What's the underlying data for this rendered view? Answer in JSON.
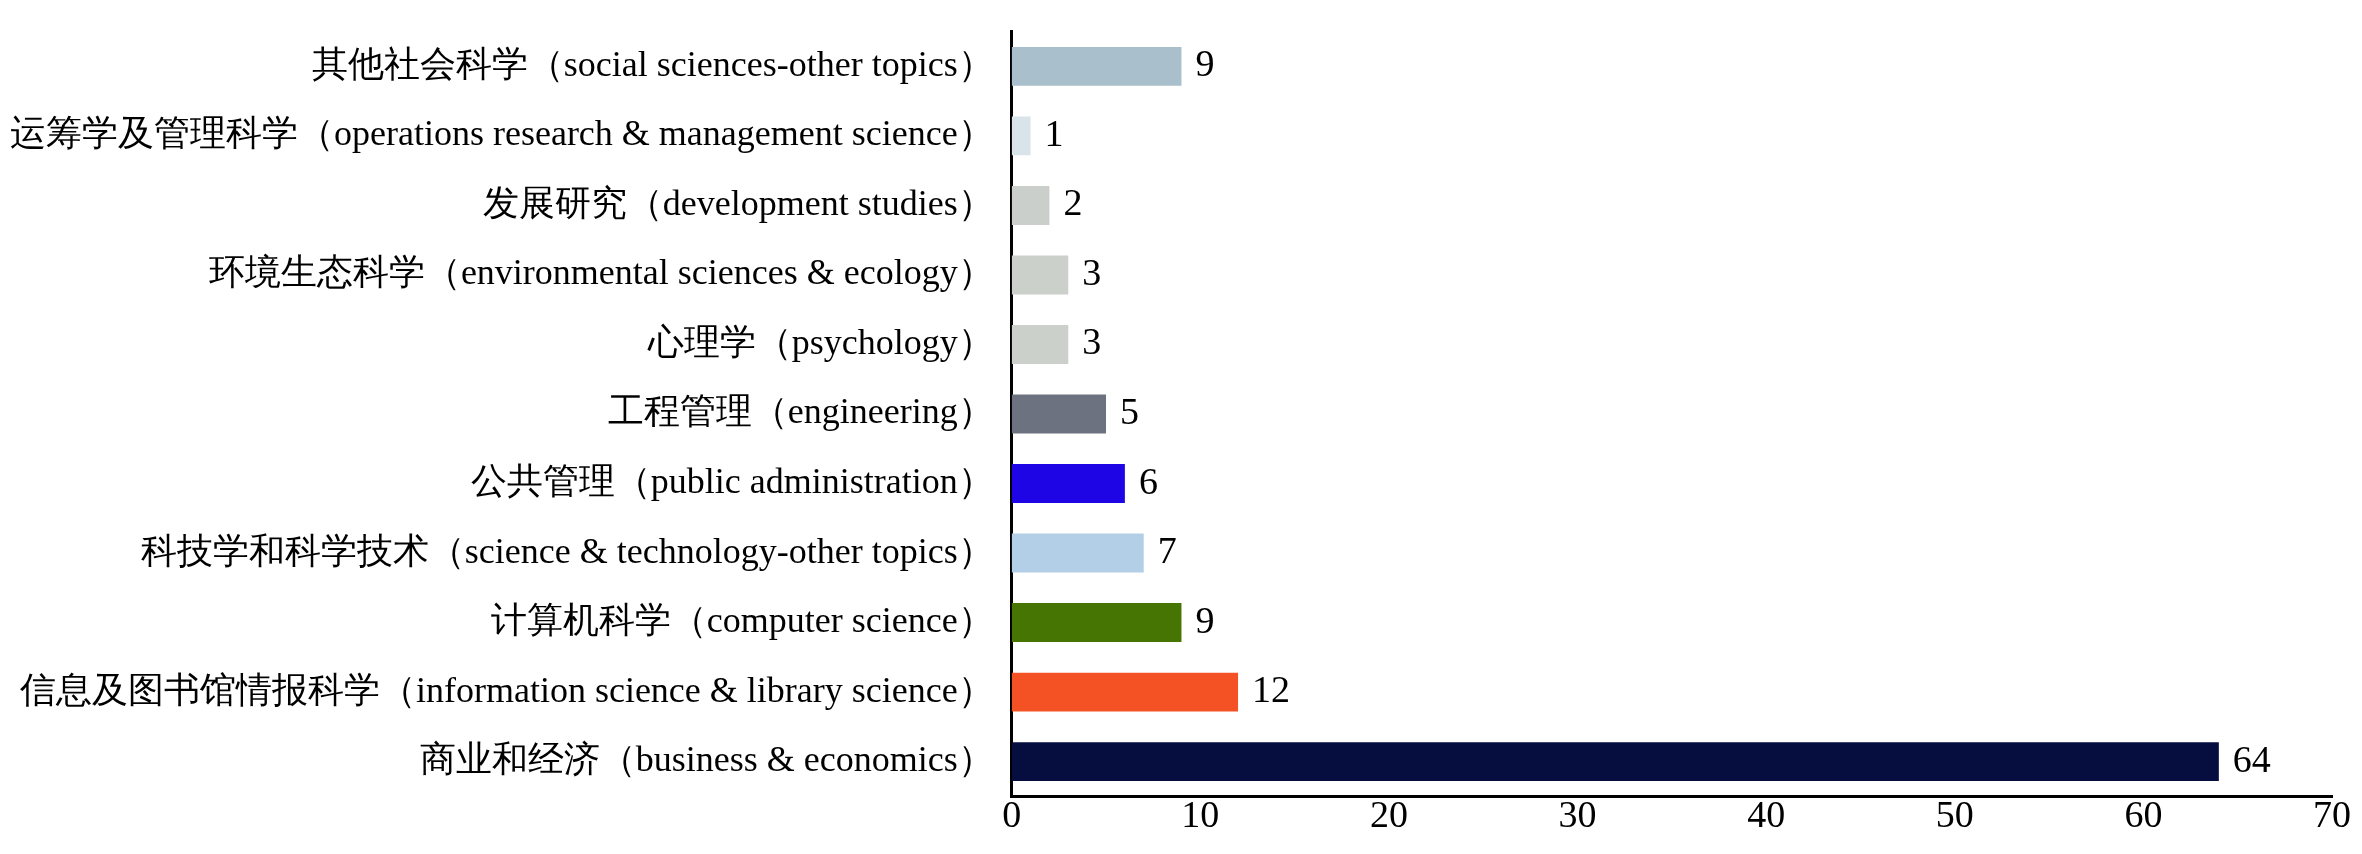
{
  "chart_data": {
    "type": "bar",
    "orientation": "horizontal",
    "categories": [
      "其他社会科学（social sciences-other topics）",
      "运筹学及管理科学（operations research & management science）",
      "发展研究（development studies）",
      "环境生态科学（environmental sciences & ecology）",
      "心理学（psychology）",
      "工程管理（engineering）",
      "公共管理（public administration）",
      "科技学和科学技术（science & technology-other topics）",
      "计算机科学（computer science）",
      "信息及图书馆情报科学（information science & library science）",
      "商业和经济（business & economics）"
    ],
    "values": [
      9,
      1,
      2,
      3,
      3,
      5,
      6,
      7,
      9,
      12,
      64
    ],
    "colors": [
      "#a9bfcb",
      "#d9e4ea",
      "#cbcfcb",
      "#cbd0cb",
      "#cbd0cb",
      "#6d7280",
      "#1e05e6",
      "#b3cfe8",
      "#467503",
      "#f45224",
      "#050e3e"
    ],
    "xlim": [
      0,
      70
    ],
    "xticks": [
      0,
      10,
      20,
      30,
      40,
      50,
      60,
      70
    ],
    "data_labels": true,
    "grid": false,
    "legend": false
  }
}
